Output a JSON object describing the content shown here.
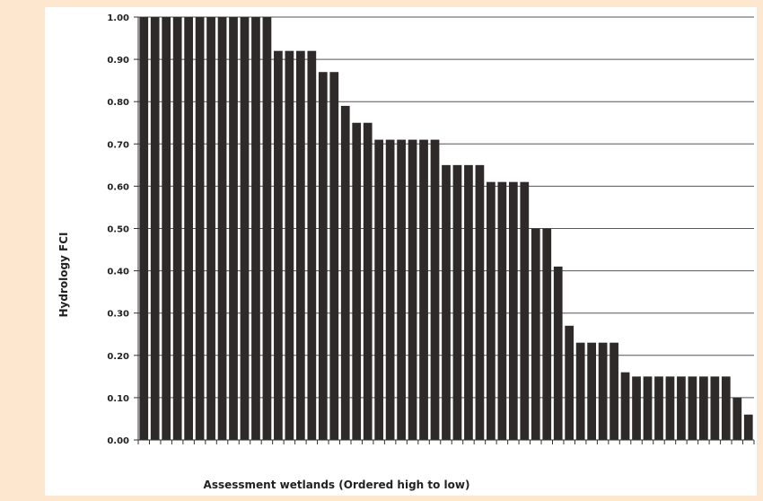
{
  "chart_data": {
    "type": "bar",
    "title": "",
    "xlabel": "Assessment wetlands (Ordered high to low)",
    "ylabel": "Hydrology FCI",
    "ylim": [
      0,
      1
    ],
    "yticks": [
      "0.00",
      "0.10",
      "0.20",
      "0.30",
      "0.40",
      "0.50",
      "0.60",
      "0.70",
      "0.80",
      "0.90",
      "1.00"
    ],
    "grid": true,
    "bar_color": "#2e2a2a",
    "values": [
      1.0,
      1.0,
      1.0,
      1.0,
      1.0,
      1.0,
      1.0,
      1.0,
      1.0,
      1.0,
      1.0,
      1.0,
      0.92,
      0.92,
      0.92,
      0.92,
      0.87,
      0.87,
      0.79,
      0.75,
      0.75,
      0.71,
      0.71,
      0.71,
      0.71,
      0.71,
      0.71,
      0.65,
      0.65,
      0.65,
      0.65,
      0.61,
      0.61,
      0.61,
      0.61,
      0.5,
      0.5,
      0.41,
      0.27,
      0.23,
      0.23,
      0.23,
      0.23,
      0.16,
      0.15,
      0.15,
      0.15,
      0.15,
      0.15,
      0.15,
      0.15,
      0.15,
      0.15,
      0.1,
      0.06
    ]
  }
}
